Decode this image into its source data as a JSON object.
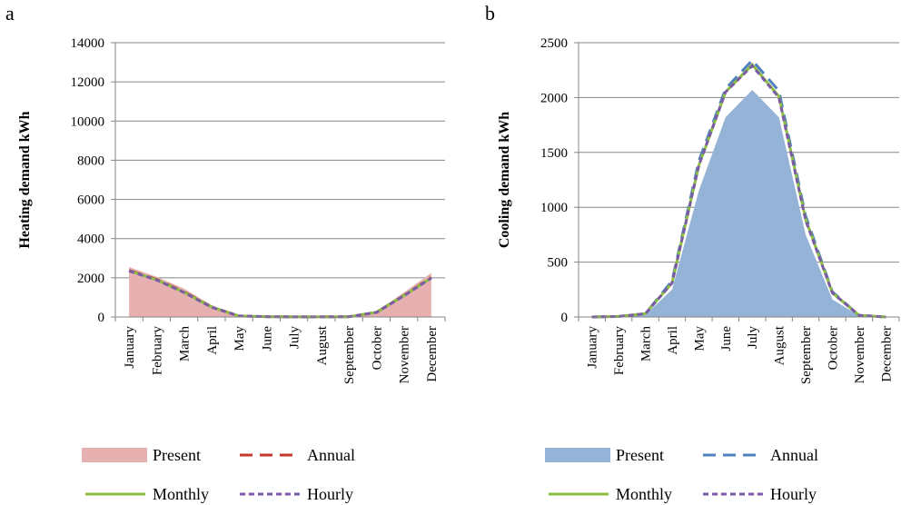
{
  "chart_data": [
    {
      "panel": "a",
      "type": "area",
      "ylabel": "Heating demand kWh",
      "ylim": [
        0,
        14000
      ],
      "yticks": [
        0,
        2000,
        4000,
        6000,
        8000,
        10000,
        12000,
        14000
      ],
      "categories": [
        "January",
        "February",
        "March",
        "April",
        "May",
        "June",
        "July",
        "August",
        "September",
        "October",
        "November",
        "December"
      ],
      "grid": true,
      "legend_position": "bottom",
      "series": [
        {
          "name": "Present",
          "style": "area",
          "color": "#e6b0b0",
          "values": [
            2550,
            2050,
            1450,
            600,
            60,
            20,
            5,
            5,
            20,
            280,
            1250,
            2250
          ]
        },
        {
          "name": "Annual",
          "style": "long-dash",
          "color": "#c0392b",
          "values": [
            2380,
            1920,
            1280,
            520,
            50,
            15,
            5,
            5,
            15,
            240,
            1100,
            2020
          ]
        },
        {
          "name": "Monthly",
          "style": "solid",
          "color": "#8cbf3f",
          "values": [
            2360,
            1900,
            1260,
            510,
            50,
            15,
            5,
            5,
            15,
            240,
            1090,
            2000
          ]
        },
        {
          "name": "Hourly",
          "style": "dash",
          "color": "#7b5aa6",
          "values": [
            2350,
            1890,
            1250,
            500,
            50,
            15,
            5,
            5,
            15,
            230,
            1080,
            1990
          ]
        }
      ]
    },
    {
      "panel": "b",
      "type": "area",
      "ylabel": "Cooling demand kWh",
      "ylim": [
        0,
        2500
      ],
      "yticks": [
        0,
        500,
        1000,
        1500,
        2000,
        2500
      ],
      "categories": [
        "January",
        "February",
        "March",
        "April",
        "May",
        "June",
        "July",
        "August",
        "September",
        "October",
        "November",
        "December"
      ],
      "grid": true,
      "legend_position": "bottom",
      "series": [
        {
          "name": "Present",
          "style": "area",
          "color": "#95b3d7",
          "values": [
            0,
            5,
            20,
            250,
            1150,
            1820,
            2070,
            1820,
            750,
            160,
            10,
            0
          ]
        },
        {
          "name": "Annual",
          "style": "long-dash",
          "color": "#4f81bd",
          "values": [
            0,
            5,
            30,
            330,
            1420,
            2080,
            2340,
            2060,
            920,
            230,
            15,
            0
          ]
        },
        {
          "name": "Monthly",
          "style": "solid",
          "color": "#8cbf3f",
          "values": [
            0,
            5,
            30,
            310,
            1380,
            2050,
            2300,
            2010,
            890,
            220,
            15,
            0
          ]
        },
        {
          "name": "Hourly",
          "style": "dash",
          "color": "#7b5aa6",
          "values": [
            0,
            5,
            30,
            310,
            1380,
            2050,
            2290,
            2000,
            880,
            220,
            15,
            0
          ]
        }
      ]
    }
  ]
}
